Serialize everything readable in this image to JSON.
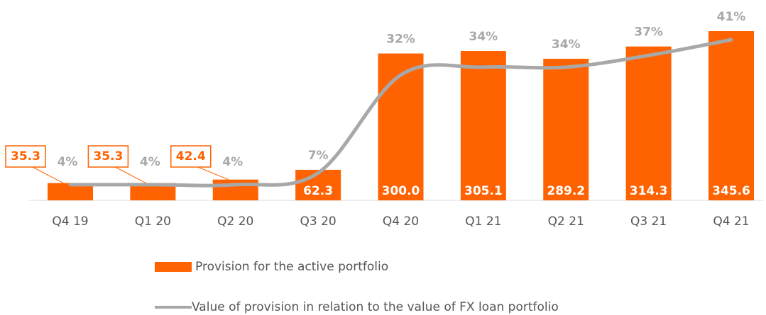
{
  "chart_data": {
    "type": "bar",
    "categories": [
      "Q4 19",
      "Q1 20",
      "Q2 20",
      "Q3 20",
      "Q4 20",
      "Q1 21",
      "Q2 21",
      "Q3 21",
      "Q4 21"
    ],
    "series": [
      {
        "name": "Provision for the active portfolio",
        "color": "#ff6200",
        "type": "bar",
        "values": [
          35.3,
          35.3,
          42.4,
          62.3,
          300.0,
          305.1,
          289.2,
          314.3,
          345.6
        ],
        "value_labels": [
          "35.3",
          "35.3",
          "42.4",
          "62.3",
          "300.0",
          "305.1",
          "289.2",
          "314.3",
          "345.6"
        ]
      },
      {
        "name": "Value of provision in relation to the value of FX loan portfolio",
        "color": "#a8a8a8",
        "type": "line",
        "axis": "y2",
        "values": [
          4,
          4,
          4,
          7,
          32,
          34,
          34,
          37,
          41
        ],
        "value_labels": [
          "4%",
          "4%",
          "4%",
          "7%",
          "32%",
          "34%",
          "34%",
          "37%",
          "41%"
        ]
      }
    ],
    "ylim": [
      0,
      400
    ],
    "y2lim": [
      0,
      50
    ],
    "legend": "bottom"
  }
}
